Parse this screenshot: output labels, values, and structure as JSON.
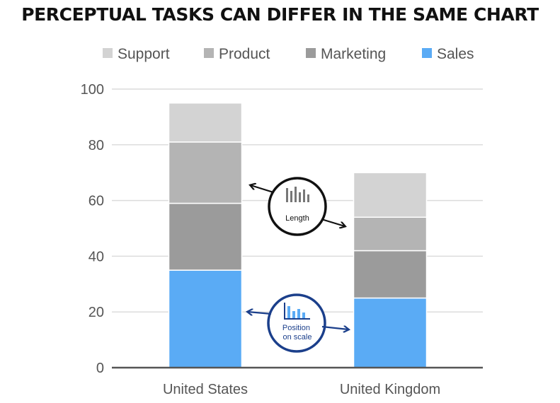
{
  "chart_data": {
    "type": "bar",
    "stacked": true,
    "title": "PERCEPTUAL TASKS CAN DIFFER IN THE SAME CHART",
    "xlabel": "",
    "ylabel": "",
    "ylim": [
      0,
      100
    ],
    "yticks": [
      0,
      20,
      40,
      60,
      80,
      100
    ],
    "grid": true,
    "legend_position": "top",
    "categories": [
      "United States",
      "United Kingdom"
    ],
    "series": [
      {
        "name": "Sales",
        "values": [
          35,
          25
        ],
        "color": "#5aabf5"
      },
      {
        "name": "Marketing",
        "values": [
          24,
          17
        ],
        "color": "#9b9b9b"
      },
      {
        "name": "Product",
        "values": [
          22,
          12
        ],
        "color": "#b4b4b4"
      },
      {
        "name": "Support",
        "values": [
          14,
          16
        ],
        "color": "#d3d3d3"
      }
    ],
    "legend_order": [
      "Support",
      "Product",
      "Marketing",
      "Sales"
    ],
    "annotations": [
      {
        "label": "Length",
        "color": "#111111",
        "icon": "vertical-bars-icon"
      },
      {
        "label_lines": [
          "Position",
          "on scale"
        ],
        "color": "#1b3f8b",
        "icon": "bar-chart-icon"
      }
    ]
  }
}
